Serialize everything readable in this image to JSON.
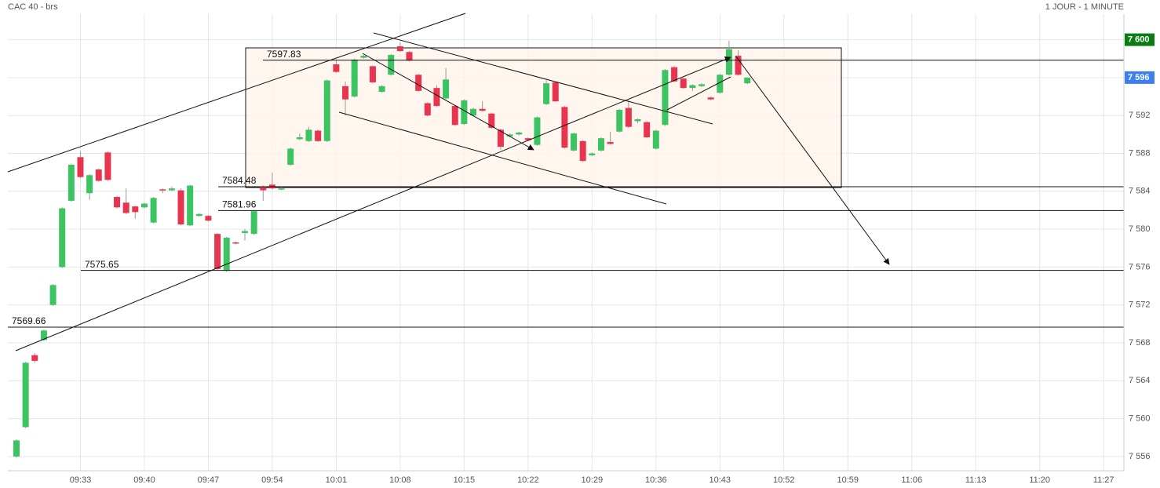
{
  "chart_data": {
    "type": "candlestick",
    "title": "CAC 40 - brs",
    "period": "1 JOUR - 1 MINUTE",
    "categories": [
      null,
      null,
      null,
      null,
      null,
      null,
      null,
      "09:33",
      null,
      null,
      null,
      null,
      null,
      null,
      "09:40",
      null,
      null,
      null,
      null,
      null,
      null,
      "09:47",
      null,
      null,
      null,
      null,
      null,
      null,
      "09:54",
      null,
      null,
      null,
      null,
      null,
      null,
      "10:01",
      null,
      null,
      null,
      null,
      null,
      null,
      "10:08",
      null,
      null,
      null,
      null,
      null,
      null,
      "10:15",
      null,
      null,
      null,
      null,
      null,
      null,
      "10:22",
      null,
      null,
      null,
      null,
      null,
      null,
      "10:29",
      null,
      null,
      null,
      null,
      null,
      null,
      "10:36",
      null,
      null,
      null,
      null,
      null,
      null,
      "10:43",
      null,
      null,
      null,
      null,
      null,
      null,
      "10:52",
      null,
      null,
      null,
      null,
      null,
      null,
      "10:59",
      null,
      null,
      null,
      null,
      null,
      null,
      "11:06",
      null,
      null,
      null,
      null,
      null,
      null,
      "11:13",
      null,
      null,
      null,
      null,
      null,
      null,
      "11:20",
      null,
      null,
      null,
      null,
      null,
      null,
      "11:27"
    ],
    "open": [
      7556.0,
      7559.1,
      7566.7,
      7568.3,
      7572.0,
      7576.0,
      7583.0,
      7587.6,
      7583.8,
      7586.3,
      7588.1,
      7583.4,
      7582.8,
      7582.4,
      7582.3,
      7580.7,
      7584.2,
      7584.1,
      7584.1,
      7580.4,
      7581.4,
      7581.4,
      7579.5,
      7575.6,
      7578.6,
      7579.6,
      7579.5,
      7584.5,
      7584.7,
      7584.2,
      7586.8,
      7589.5,
      7589.3,
      7590.4,
      7589.3,
      7597.4,
      7595.1,
      7594.0,
      7598.1,
      7597.2,
      7594.5,
      7596.3,
      7599.3,
      7598.7,
      7596.3,
      7593.3,
      7594.9,
      7593.8,
      7593.0,
      7591.1,
      7592.0,
      7592.7,
      7592.2,
      7590.5,
      7589.8,
      7590.0,
      7589.6,
      7588.9,
      7593.2,
      7595.5,
      7592.9,
      7588.3,
      7589.3,
      7587.8,
      7588.3,
      7589.2,
      7590.3,
      7592.8,
      7591.4,
      7591.3,
      7588.5,
      7591.0,
      7597.1,
      7595.9,
      7594.9,
      7595.1,
      7593.9,
      7594.4,
      7596.3,
      7598.3,
      7595.4,
      null,
      null,
      null,
      null,
      null,
      null,
      null,
      null,
      null,
      null,
      null,
      null,
      null,
      null,
      null,
      null,
      null,
      null,
      null,
      null,
      null,
      null,
      null,
      null,
      null,
      null,
      null,
      null,
      null,
      null,
      null,
      null,
      null,
      null,
      null,
      null,
      null,
      null,
      null
    ],
    "high": [
      7557.8,
      7566.0,
      7566.9,
      7569.4,
      7574.2,
      7582.3,
      7586.9,
      7588.2,
      7585.8,
      7586.4,
      7588.2,
      7583.5,
      7584.3,
      7582.5,
      7582.8,
      7583.4,
      7584.3,
      7584.5,
      7584.3,
      7584.7,
      7581.7,
      7581.5,
      7579.6,
      7579.2,
      7578.7,
      7580.0,
      7582.0,
      7584.6,
      7586.0,
      7584.5,
      7588.6,
      7590.1,
      7590.8,
      7590.5,
      7595.8,
      7597.9,
      7595.6,
      7598.0,
      7598.4,
      7597.3,
      7595.2,
      7598.5,
      7599.7,
      7598.8,
      7596.4,
      7593.4,
      7595.2,
      7597.0,
      7593.1,
      7593.7,
      7592.8,
      7593.5,
      7592.3,
      7590.6,
      7590.1,
      7590.3,
      7589.7,
      7591.9,
      7595.7,
      7595.6,
      7593.0,
      7590.2,
      7589.4,
      7588.1,
      7589.7,
      7590.3,
      7592.7,
      7593.6,
      7591.7,
      7591.4,
      7590.5,
      7596.9,
      7597.2,
      7596.0,
      7595.3,
      7595.4,
      7594.0,
      7596.4,
      7599.9,
      7598.9,
      7596.0,
      null,
      null,
      null,
      null,
      null,
      null,
      null,
      null,
      null,
      null,
      null,
      null,
      null,
      null,
      null,
      null,
      null,
      null,
      null,
      null,
      null,
      null,
      null,
      null,
      null,
      null,
      null,
      null,
      null,
      null,
      null,
      null,
      null,
      null,
      null,
      null,
      null,
      null,
      null
    ],
    "low": [
      7555.9,
      7559.0,
      7565.9,
      7568.2,
      7571.9,
      7575.9,
      7582.9,
      7585.4,
      7583.1,
      7585.0,
      7585.1,
      7582.2,
      7581.6,
      7581.1,
      7582.2,
      7580.6,
      7583.8,
      7584.0,
      7580.4,
      7580.3,
      7581.3,
      7580.8,
      7575.7,
      7575.5,
      7578.4,
      7578.8,
      7579.4,
      7583.0,
      7584.2,
      7584.1,
      7586.7,
      7589.4,
      7589.2,
      7589.2,
      7589.2,
      7596.5,
      7592.0,
      7593.9,
      7598.0,
      7595.4,
      7594.4,
      7596.2,
      7598.7,
      7597.7,
      7594.5,
      7591.9,
      7592.9,
      7593.7,
      7590.9,
      7591.0,
      7591.9,
      7592.4,
      7590.6,
      7588.4,
      7589.7,
      7589.9,
      7589.3,
      7588.8,
      7593.1,
      7593.4,
      7588.5,
      7588.2,
      7587.1,
      7587.7,
      7588.2,
      7588.9,
      7590.2,
      7590.7,
      7591.2,
      7589.6,
      7588.4,
      7590.9,
      7595.5,
      7594.8,
      7594.6,
      7595.0,
      7593.6,
      7594.3,
      7596.2,
      7596.2,
      7595.3,
      null,
      null,
      null,
      null,
      null,
      null,
      null,
      null,
      null,
      null,
      null,
      null,
      null,
      null,
      null,
      null,
      null,
      null,
      null,
      null,
      null,
      null,
      null,
      null,
      null,
      null,
      null,
      null,
      null,
      null,
      null,
      null,
      null,
      null,
      null,
      null,
      null,
      null,
      null
    ],
    "close": [
      7557.7,
      7565.9,
      7566.1,
      7569.3,
      7574.1,
      7582.2,
      7586.8,
      7585.5,
      7585.7,
      7585.1,
      7585.2,
      7582.3,
      7581.7,
      7581.8,
      7582.7,
      7583.3,
      7584.1,
      7584.3,
      7580.5,
      7584.6,
      7581.6,
      7580.9,
      7575.8,
      7579.1,
      7578.5,
      7579.8,
      7581.9,
      7584.1,
      7584.3,
      7584.3,
      7588.5,
      7589.7,
      7590.5,
      7589.3,
      7595.7,
      7596.6,
      7593.7,
      7597.9,
      7598.3,
      7595.5,
      7595.1,
      7598.4,
      7598.8,
      7597.8,
      7594.6,
      7592.0,
      7593.0,
      7595.8,
      7591.0,
      7593.6,
      7592.7,
      7592.5,
      7590.7,
      7588.7,
      7590.0,
      7590.2,
      7589.4,
      7591.8,
      7595.4,
      7593.5,
      7588.6,
      7590.1,
      7587.2,
      7588.0,
      7589.6,
      7589.0,
      7592.6,
      7590.8,
      7591.6,
      7589.7,
      7590.4,
      7596.8,
      7595.6,
      7594.9,
      7595.2,
      7595.3,
      7593.7,
      7596.3,
      7599.0,
      7596.3,
      7596.0,
      null,
      null,
      null,
      null,
      null,
      null,
      null,
      null,
      null,
      null,
      null,
      null,
      null,
      null,
      null,
      null,
      null,
      null,
      null,
      null,
      null,
      null,
      null,
      null,
      null,
      null,
      null,
      null,
      null,
      null,
      null,
      null,
      null,
      null,
      null,
      null,
      null,
      null,
      null
    ],
    "up_color": "#3cc362",
    "down_color": "#e8344e",
    "ylim": [
      7554.5,
      7602.7
    ],
    "yticks": [
      {
        "value": 7556,
        "label": "7 556"
      },
      {
        "value": 7560,
        "label": "7 560"
      },
      {
        "value": 7564,
        "label": "7 564"
      },
      {
        "value": 7568,
        "label": "7 568"
      },
      {
        "value": 7572,
        "label": "7 572"
      },
      {
        "value": 7576,
        "label": "7 576"
      },
      {
        "value": 7580,
        "label": "7 580"
      },
      {
        "value": 7584,
        "label": "7 584"
      },
      {
        "value": 7588,
        "label": "7 588"
      },
      {
        "value": 7592,
        "label": "7 592"
      },
      {
        "value": 7596,
        "label": "7 596"
      },
      {
        "value": 7600,
        "label": "7 600"
      }
    ],
    "levels": [
      7597.83,
      7584.48,
      7581.96,
      7575.65,
      7569.66
    ],
    "high_badge": {
      "value": 7600,
      "label": "7 600",
      "color": "#0a7d12"
    },
    "last_badge": {
      "value": 7596,
      "label": "7 596",
      "color": "#3d7ff0"
    },
    "grid": true
  }
}
